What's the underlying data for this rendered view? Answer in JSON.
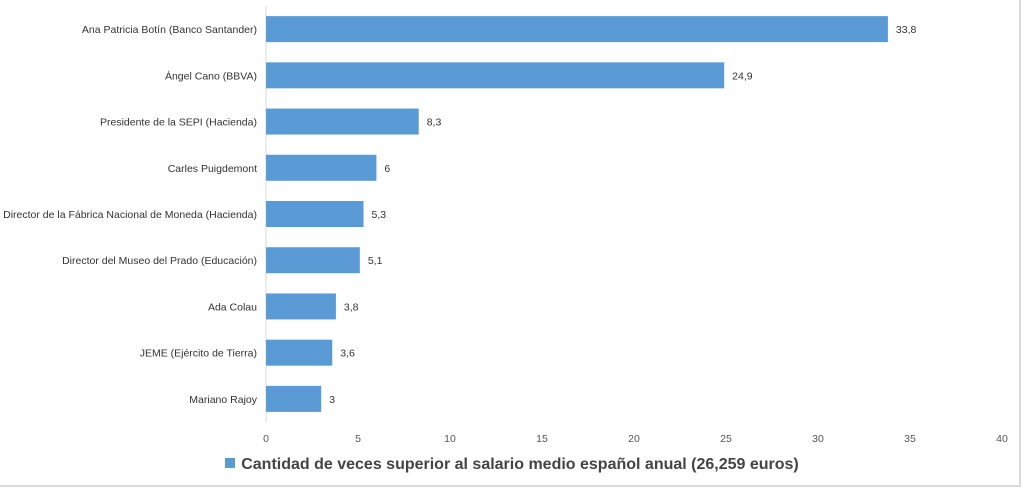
{
  "chart_data": {
    "type": "bar",
    "orientation": "horizontal",
    "categories": [
      "Ana Patricia Botín (Banco Santander)",
      "Ángel Cano (BBVA)",
      "Presidente de la SEPI (Hacienda)",
      "Carles Puigdemont",
      "Director de la Fábrica Nacional de Moneda (Hacienda)",
      "Director del Museo del Prado (Educación)",
      "Ada Colau",
      "JEME (Ejército de Tierra)",
      "Mariano Rajoy"
    ],
    "values": [
      33.8,
      24.9,
      8.3,
      6,
      5.3,
      5.1,
      3.8,
      3.6,
      3
    ],
    "value_labels": [
      "33,8",
      "24,9",
      "8,3",
      "6",
      "5,3",
      "5,1",
      "3,8",
      "3,6",
      "3"
    ],
    "series": [
      {
        "name": "Cantidad de veces superior al salario medio español anual (26,259 euros)"
      }
    ],
    "xlim": [
      0,
      40
    ],
    "xticks": [
      "0",
      "5",
      "10",
      "15",
      "20",
      "25",
      "30",
      "35",
      "40"
    ],
    "grid": false,
    "legend": "bottom",
    "color": "#5b9bd5"
  }
}
